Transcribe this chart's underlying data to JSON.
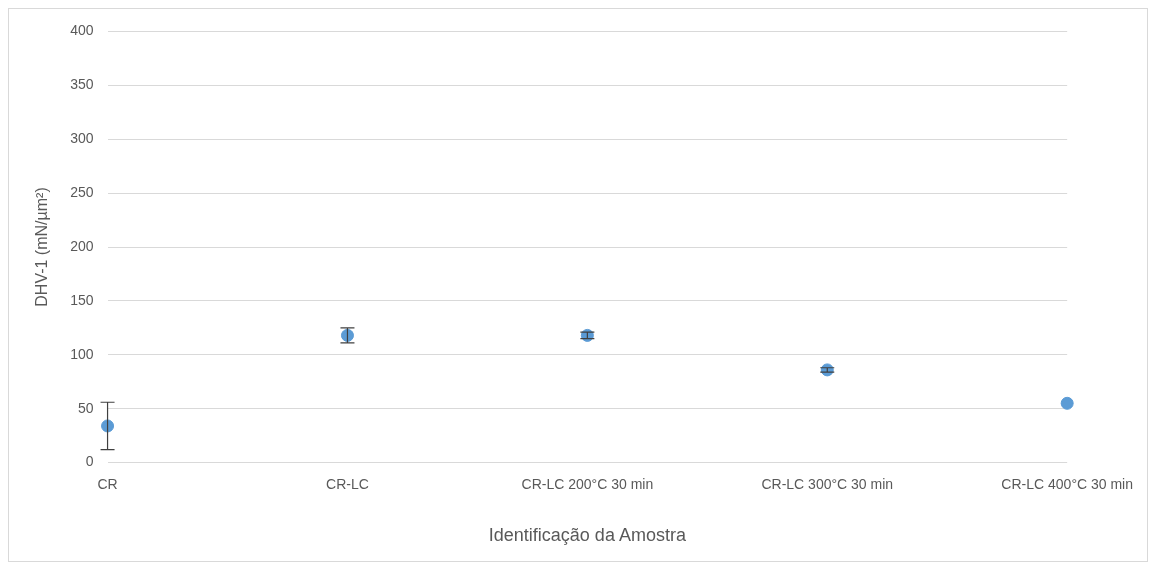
{
  "chart_data": {
    "type": "scatter",
    "xlabel": "Identificação da Amostra",
    "ylabel": "DHV-1 (mN/µm²)",
    "categories": [
      "CR",
      "CR-LC",
      "CR-LC 200°C 30 min",
      "CR-LC 300°C 30 min",
      "CR-LC 400°C 30 min"
    ],
    "values": [
      34,
      118,
      118,
      86,
      55
    ],
    "errors": [
      22,
      7,
      3,
      2,
      null
    ],
    "color": "#5b9bd5",
    "marker": "circle",
    "ylim": [
      0,
      400
    ],
    "yticks": [
      0,
      50,
      100,
      150,
      200,
      250,
      300,
      350,
      400
    ],
    "grid": "y",
    "legend": false
  }
}
